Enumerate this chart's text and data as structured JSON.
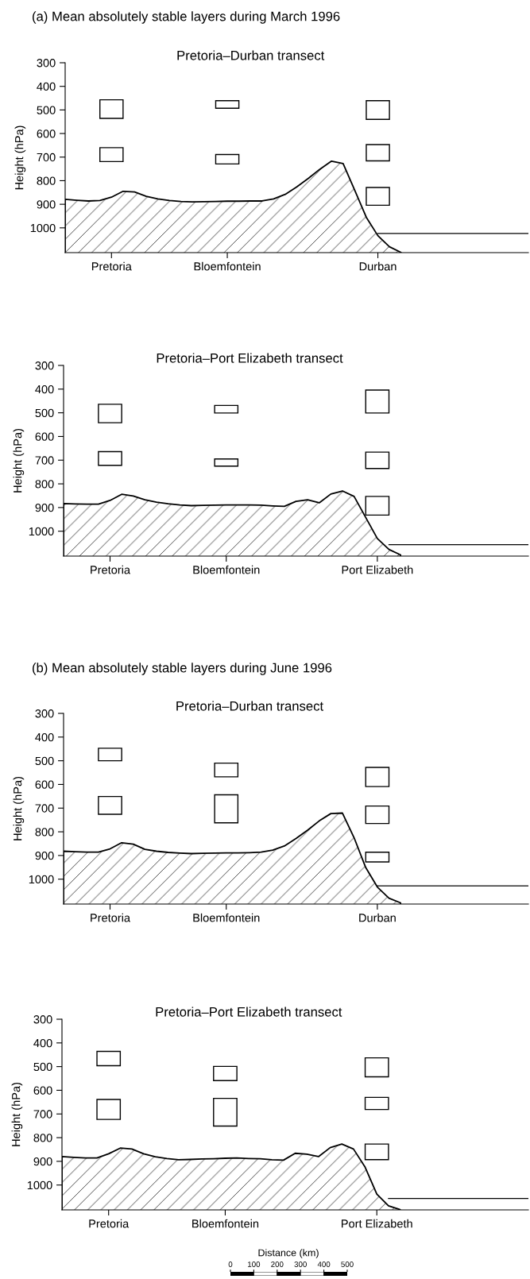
{
  "chart_data": [
    {
      "type": "bar",
      "title": "Pretoria–Durban transect",
      "ylabel": "Height (hPa)",
      "annotations": [
        "(a) Mean absolutely stable layers during March 1996"
      ],
      "categories": [
        null,
        null,
        null,
        null,
        "Pretoria",
        null,
        null,
        null,
        null,
        null,
        null,
        null,
        null,
        null,
        "Bloemfontein",
        null,
        null,
        null,
        null,
        null,
        null,
        null,
        null,
        null,
        null,
        null,
        null,
        "Durban",
        null,
        null,
        null,
        null,
        null,
        null,
        null,
        null,
        null,
        null,
        null,
        null,
        null
      ],
      "ylim": [
        1105,
        300
      ],
      "yticks": [
        300,
        400,
        500,
        600,
        700,
        800,
        900,
        1000
      ],
      "grid": false,
      "legend": false,
      "series": [
        {
          "type": "area",
          "color": "#000000",
          "values": [
            879,
            883,
            886,
            884,
            870,
            845,
            848,
            866,
            877,
            884,
            888,
            890,
            889,
            888,
            887,
            887,
            886,
            886,
            877,
            858,
            826,
            790,
            751,
            717,
            727,
            840,
            955,
            1033,
            1080,
            1104,
            null,
            null,
            null,
            null,
            null,
            null,
            null,
            null,
            null,
            null,
            null
          ]
        },
        {
          "type": "line",
          "color": "#000000",
          "values": [
            null,
            null,
            null,
            null,
            null,
            null,
            null,
            null,
            null,
            null,
            null,
            null,
            null,
            null,
            null,
            null,
            null,
            null,
            null,
            null,
            null,
            null,
            null,
            null,
            null,
            null,
            null,
            1024,
            1024,
            1024,
            1024,
            1024,
            1024,
            1024,
            1024,
            1024,
            1024,
            1024,
            1024,
            1024,
            1024
          ]
        },
        {
          "type": "bar",
          "color": "#000000",
          "base": [
            null,
            null,
            null,
            null,
            457,
            null,
            null,
            null,
            null,
            null,
            null,
            null,
            null,
            null,
            461,
            null,
            null,
            null,
            null,
            null,
            null,
            null,
            null,
            null,
            null,
            null,
            null,
            461,
            null,
            null,
            null,
            null,
            null,
            null,
            null,
            null,
            null,
            null,
            null,
            null,
            null
          ],
          "values": [
            null,
            null,
            null,
            null,
            79,
            null,
            null,
            null,
            null,
            null,
            null,
            null,
            null,
            null,
            32,
            null,
            null,
            null,
            null,
            null,
            null,
            null,
            null,
            null,
            null,
            null,
            null,
            79,
            null,
            null,
            null,
            null,
            null,
            null,
            null,
            null,
            null,
            null,
            null,
            null,
            null
          ]
        },
        {
          "type": "bar",
          "color": "#000000",
          "base": [
            null,
            null,
            null,
            null,
            660,
            null,
            null,
            null,
            null,
            null,
            null,
            null,
            null,
            null,
            689,
            null,
            null,
            null,
            null,
            null,
            null,
            null,
            null,
            null,
            null,
            null,
            null,
            647,
            null,
            null,
            null,
            null,
            null,
            null,
            null,
            null,
            null,
            null,
            null,
            null,
            null
          ],
          "values": [
            null,
            null,
            null,
            null,
            59,
            null,
            null,
            null,
            null,
            null,
            null,
            null,
            null,
            null,
            40,
            null,
            null,
            null,
            null,
            null,
            null,
            null,
            null,
            null,
            null,
            null,
            null,
            69,
            null,
            null,
            null,
            null,
            null,
            null,
            null,
            null,
            null,
            null,
            null,
            null,
            null
          ]
        },
        {
          "type": "bar",
          "color": "#000000",
          "base": [
            null,
            null,
            null,
            null,
            null,
            null,
            null,
            null,
            null,
            null,
            null,
            null,
            null,
            null,
            null,
            null,
            null,
            null,
            null,
            null,
            null,
            null,
            null,
            null,
            null,
            null,
            null,
            829,
            null,
            null,
            null,
            null,
            null,
            null,
            null,
            null,
            null,
            null,
            null,
            null,
            null
          ],
          "values": [
            null,
            null,
            null,
            null,
            null,
            null,
            null,
            null,
            null,
            null,
            null,
            null,
            null,
            null,
            null,
            null,
            null,
            null,
            null,
            null,
            null,
            null,
            null,
            null,
            null,
            null,
            null,
            75,
            null,
            null,
            null,
            null,
            null,
            null,
            null,
            null,
            null,
            null,
            null,
            null,
            null
          ]
        }
      ]
    },
    {
      "type": "bar",
      "title": "Pretoria–Port Elizabeth transect",
      "ylabel": "Height (hPa)",
      "categories": [
        null,
        null,
        null,
        null,
        "Pretoria",
        null,
        null,
        null,
        null,
        null,
        null,
        null,
        null,
        null,
        "Bloemfontein",
        null,
        null,
        null,
        null,
        null,
        null,
        null,
        null,
        null,
        null,
        null,
        null,
        "Port Elizabeth",
        null,
        null,
        null,
        null,
        null,
        null,
        null,
        null,
        null,
        null,
        null,
        null,
        null
      ],
      "ylim": [
        1105,
        300
      ],
      "yticks": [
        300,
        400,
        500,
        600,
        700,
        800,
        900,
        1000
      ],
      "grid": false,
      "legend": false,
      "series": [
        {
          "type": "area",
          "color": "#000000",
          "values": [
            883,
            885,
            886,
            886,
            870,
            844,
            851,
            867,
            877,
            884,
            889,
            892,
            891,
            890,
            889,
            889,
            889,
            890,
            893,
            895,
            874,
            867,
            880,
            843,
            830,
            853,
            942,
            1031,
            1077,
            1100,
            null,
            null,
            null,
            null,
            null,
            null,
            null,
            null,
            null,
            null,
            null
          ]
        },
        {
          "type": "line",
          "color": "#000000",
          "values": [
            null,
            null,
            null,
            null,
            null,
            null,
            null,
            null,
            null,
            null,
            null,
            null,
            null,
            null,
            null,
            null,
            null,
            null,
            null,
            null,
            null,
            null,
            null,
            null,
            null,
            null,
            null,
            null,
            1057,
            1057,
            1057,
            1057,
            1057,
            1057,
            1057,
            1057,
            1057,
            1057,
            1057,
            1057,
            1057
          ]
        },
        {
          "type": "bar",
          "color": "#000000",
          "base": [
            null,
            null,
            null,
            null,
            464,
            null,
            null,
            null,
            null,
            null,
            null,
            null,
            null,
            null,
            469,
            null,
            null,
            null,
            null,
            null,
            null,
            null,
            null,
            null,
            null,
            null,
            null,
            404,
            null,
            null,
            null,
            null,
            null,
            null,
            null,
            null,
            null,
            null,
            null,
            null,
            null
          ],
          "values": [
            null,
            null,
            null,
            null,
            78,
            null,
            null,
            null,
            null,
            null,
            null,
            null,
            null,
            null,
            32,
            null,
            null,
            null,
            null,
            null,
            null,
            null,
            null,
            null,
            null,
            null,
            null,
            97,
            null,
            null,
            null,
            null,
            null,
            null,
            null,
            null,
            null,
            null,
            null,
            null,
            null
          ]
        },
        {
          "type": "bar",
          "color": "#000000",
          "base": [
            null,
            null,
            null,
            null,
            664,
            null,
            null,
            null,
            null,
            null,
            null,
            null,
            null,
            null,
            695,
            null,
            null,
            null,
            null,
            null,
            null,
            null,
            null,
            null,
            null,
            null,
            null,
            666,
            null,
            null,
            null,
            null,
            null,
            null,
            null,
            null,
            null,
            null,
            null,
            null,
            null
          ],
          "values": [
            null,
            null,
            null,
            null,
            58,
            null,
            null,
            null,
            null,
            null,
            null,
            null,
            null,
            null,
            30,
            null,
            null,
            null,
            null,
            null,
            null,
            null,
            null,
            null,
            null,
            null,
            null,
            69,
            null,
            null,
            null,
            null,
            null,
            null,
            null,
            null,
            null,
            null,
            null,
            null,
            null
          ]
        },
        {
          "type": "bar",
          "color": "#000000",
          "base": [
            null,
            null,
            null,
            null,
            null,
            null,
            null,
            null,
            null,
            null,
            null,
            null,
            null,
            null,
            null,
            null,
            null,
            null,
            null,
            null,
            null,
            null,
            null,
            null,
            null,
            null,
            null,
            853,
            null,
            null,
            null,
            null,
            null,
            null,
            null,
            null,
            null,
            null,
            null,
            null,
            null
          ],
          "values": [
            null,
            null,
            null,
            null,
            null,
            null,
            null,
            null,
            null,
            null,
            null,
            null,
            null,
            null,
            null,
            null,
            null,
            null,
            null,
            null,
            null,
            null,
            null,
            null,
            null,
            null,
            null,
            79,
            null,
            null,
            null,
            null,
            null,
            null,
            null,
            null,
            null,
            null,
            null,
            null,
            null
          ]
        }
      ]
    },
    {
      "type": "bar",
      "title": "Pretoria–Durban transect",
      "ylabel": "Height (hPa)",
      "annotations": [
        "(b) Mean absolutely stable layers during June 1996"
      ],
      "categories": [
        null,
        null,
        null,
        null,
        "Pretoria",
        null,
        null,
        null,
        null,
        null,
        null,
        null,
        null,
        null,
        "Bloemfontein",
        null,
        null,
        null,
        null,
        null,
        null,
        null,
        null,
        null,
        null,
        null,
        null,
        "Durban",
        null,
        null,
        null,
        null,
        null,
        null,
        null,
        null,
        null,
        null,
        null,
        null,
        null
      ],
      "ylim": [
        1105,
        300
      ],
      "yticks": [
        300,
        400,
        500,
        600,
        700,
        800,
        900,
        1000
      ],
      "grid": false,
      "legend": false,
      "series": [
        {
          "type": "area",
          "color": "#000000",
          "values": [
            882,
            884,
            886,
            886,
            872,
            846,
            852,
            874,
            882,
            887,
            890,
            892,
            891,
            890,
            889,
            889,
            888,
            886,
            877,
            860,
            828,
            793,
            754,
            723,
            721,
            825,
            951,
            1033,
            1080,
            1100,
            null,
            null,
            null,
            null,
            null,
            null,
            null,
            null,
            null,
            null,
            null
          ]
        },
        {
          "type": "line",
          "color": "#000000",
          "values": [
            null,
            null,
            null,
            null,
            null,
            null,
            null,
            null,
            null,
            null,
            null,
            null,
            null,
            null,
            null,
            null,
            null,
            null,
            null,
            null,
            null,
            null,
            null,
            null,
            null,
            null,
            null,
            1028,
            1028,
            1028,
            1028,
            1028,
            1028,
            1028,
            1028,
            1028,
            1028,
            1028,
            1028,
            1028,
            1028
          ]
        },
        {
          "type": "bar",
          "color": "#000000",
          "base": [
            null,
            null,
            null,
            null,
            447,
            null,
            null,
            null,
            null,
            null,
            null,
            null,
            null,
            null,
            510,
            null,
            null,
            null,
            null,
            null,
            null,
            null,
            null,
            null,
            null,
            null,
            null,
            528,
            null,
            null,
            null,
            null,
            null,
            null,
            null,
            null,
            null,
            null,
            null,
            null,
            null
          ],
          "values": [
            null,
            null,
            null,
            null,
            53,
            null,
            null,
            null,
            null,
            null,
            null,
            null,
            null,
            null,
            58,
            null,
            null,
            null,
            null,
            null,
            null,
            null,
            null,
            null,
            null,
            null,
            null,
            81,
            null,
            null,
            null,
            null,
            null,
            null,
            null,
            null,
            null,
            null,
            null,
            null,
            null
          ]
        },
        {
          "type": "bar",
          "color": "#000000",
          "base": [
            null,
            null,
            null,
            null,
            651,
            null,
            null,
            null,
            null,
            null,
            null,
            null,
            null,
            null,
            644,
            null,
            null,
            null,
            null,
            null,
            null,
            null,
            null,
            null,
            null,
            null,
            null,
            691,
            null,
            null,
            null,
            null,
            null,
            null,
            null,
            null,
            null,
            null,
            null,
            null,
            null
          ],
          "values": [
            null,
            null,
            null,
            null,
            75,
            null,
            null,
            null,
            null,
            null,
            null,
            null,
            null,
            null,
            118,
            null,
            null,
            null,
            null,
            null,
            null,
            null,
            null,
            null,
            null,
            null,
            null,
            74,
            null,
            null,
            null,
            null,
            null,
            null,
            null,
            null,
            null,
            null,
            null,
            null,
            null
          ]
        },
        {
          "type": "bar",
          "color": "#000000",
          "base": [
            null,
            null,
            null,
            null,
            null,
            null,
            null,
            null,
            null,
            null,
            null,
            null,
            null,
            null,
            null,
            null,
            null,
            null,
            null,
            null,
            null,
            null,
            null,
            null,
            null,
            null,
            null,
            886,
            null,
            null,
            null,
            null,
            null,
            null,
            null,
            null,
            null,
            null,
            null,
            null,
            null
          ],
          "values": [
            null,
            null,
            null,
            null,
            null,
            null,
            null,
            null,
            null,
            null,
            null,
            null,
            null,
            null,
            null,
            null,
            null,
            null,
            null,
            null,
            null,
            null,
            null,
            null,
            null,
            null,
            null,
            41,
            null,
            null,
            null,
            null,
            null,
            null,
            null,
            null,
            null,
            null,
            null,
            null,
            null
          ]
        }
      ]
    },
    {
      "type": "bar",
      "title": "Pretoria–Port Elizabeth transect",
      "ylabel": "Height (hPa)",
      "categories": [
        null,
        null,
        null,
        null,
        "Pretoria",
        null,
        null,
        null,
        null,
        null,
        null,
        null,
        null,
        null,
        "Bloemfontein",
        null,
        null,
        null,
        null,
        null,
        null,
        null,
        null,
        null,
        null,
        null,
        null,
        "Port Elizabeth",
        null,
        null,
        null,
        null,
        null,
        null,
        null,
        null,
        null,
        null,
        null,
        null,
        null
      ],
      "ylim": [
        1105,
        300
      ],
      "yticks": [
        300,
        400,
        500,
        600,
        700,
        800,
        900,
        1000
      ],
      "grid": false,
      "legend": false,
      "series": [
        {
          "type": "area",
          "color": "#000000",
          "values": [
            880,
            883,
            886,
            886,
            868,
            844,
            848,
            868,
            881,
            888,
            893,
            892,
            890,
            889,
            887,
            886,
            888,
            889,
            893,
            895,
            866,
            870,
            880,
            842,
            827,
            848,
            925,
            1038,
            1088,
            1104,
            null,
            null,
            null,
            null,
            null,
            null,
            null,
            null,
            null,
            null,
            null
          ]
        },
        {
          "type": "line",
          "color": "#000000",
          "values": [
            null,
            null,
            null,
            null,
            null,
            null,
            null,
            null,
            null,
            null,
            null,
            null,
            null,
            null,
            null,
            null,
            null,
            null,
            null,
            null,
            null,
            null,
            null,
            null,
            null,
            null,
            null,
            null,
            1057,
            1057,
            1057,
            1057,
            1057,
            1057,
            1057,
            1057,
            1057,
            1057,
            1057,
            1057,
            1057
          ]
        },
        {
          "type": "bar",
          "color": "#000000",
          "base": [
            null,
            null,
            null,
            null,
            436,
            null,
            null,
            null,
            null,
            null,
            null,
            null,
            null,
            null,
            499,
            null,
            null,
            null,
            null,
            null,
            null,
            null,
            null,
            null,
            null,
            null,
            null,
            463,
            null,
            null,
            null,
            null,
            null,
            null,
            null,
            null,
            null,
            null,
            null,
            null,
            null
          ],
          "values": [
            null,
            null,
            null,
            null,
            60,
            null,
            null,
            null,
            null,
            null,
            null,
            null,
            null,
            null,
            60,
            null,
            null,
            null,
            null,
            null,
            null,
            null,
            null,
            null,
            null,
            null,
            null,
            80,
            null,
            null,
            null,
            null,
            null,
            null,
            null,
            null,
            null,
            null,
            null,
            null,
            null
          ]
        },
        {
          "type": "bar",
          "color": "#000000",
          "base": [
            null,
            null,
            null,
            null,
            639,
            null,
            null,
            null,
            null,
            null,
            null,
            null,
            null,
            null,
            634,
            null,
            null,
            null,
            null,
            null,
            null,
            null,
            null,
            null,
            null,
            null,
            null,
            630,
            null,
            null,
            null,
            null,
            null,
            null,
            null,
            null,
            null,
            null,
            null,
            null,
            null
          ],
          "values": [
            null,
            null,
            null,
            null,
            84,
            null,
            null,
            null,
            null,
            null,
            null,
            null,
            null,
            null,
            117,
            null,
            null,
            null,
            null,
            null,
            null,
            null,
            null,
            null,
            null,
            null,
            null,
            51,
            null,
            null,
            null,
            null,
            null,
            null,
            null,
            null,
            null,
            null,
            null,
            null,
            null
          ]
        },
        {
          "type": "bar",
          "color": "#000000",
          "base": [
            null,
            null,
            null,
            null,
            null,
            null,
            null,
            null,
            null,
            null,
            null,
            null,
            null,
            null,
            null,
            null,
            null,
            null,
            null,
            null,
            null,
            null,
            null,
            null,
            null,
            null,
            null,
            827,
            null,
            null,
            null,
            null,
            null,
            null,
            null,
            null,
            null,
            null,
            null,
            null,
            null
          ],
          "values": [
            null,
            null,
            null,
            null,
            null,
            null,
            null,
            null,
            null,
            null,
            null,
            null,
            null,
            null,
            null,
            null,
            null,
            null,
            null,
            null,
            null,
            null,
            null,
            null,
            null,
            null,
            null,
            66,
            null,
            null,
            null,
            null,
            null,
            null,
            null,
            null,
            null,
            null,
            null,
            null,
            null
          ]
        }
      ]
    },
    {
      "type": "bar",
      "orientation": "horizontal",
      "stacked": true,
      "xlabel": "Distance (km)",
      "categories": [
        null
      ],
      "xlim": [
        0,
        500
      ],
      "xticks": [
        0,
        100,
        200,
        300,
        400,
        500
      ],
      "series": [
        {
          "color": "#000000",
          "values": [
            100
          ]
        },
        {
          "color": "#ffffff",
          "values": [
            100
          ]
        },
        {
          "color": "#000000",
          "values": [
            100
          ]
        },
        {
          "color": "#ffffff",
          "values": [
            100
          ]
        },
        {
          "color": "#000000",
          "values": [
            100
          ]
        }
      ]
    }
  ]
}
